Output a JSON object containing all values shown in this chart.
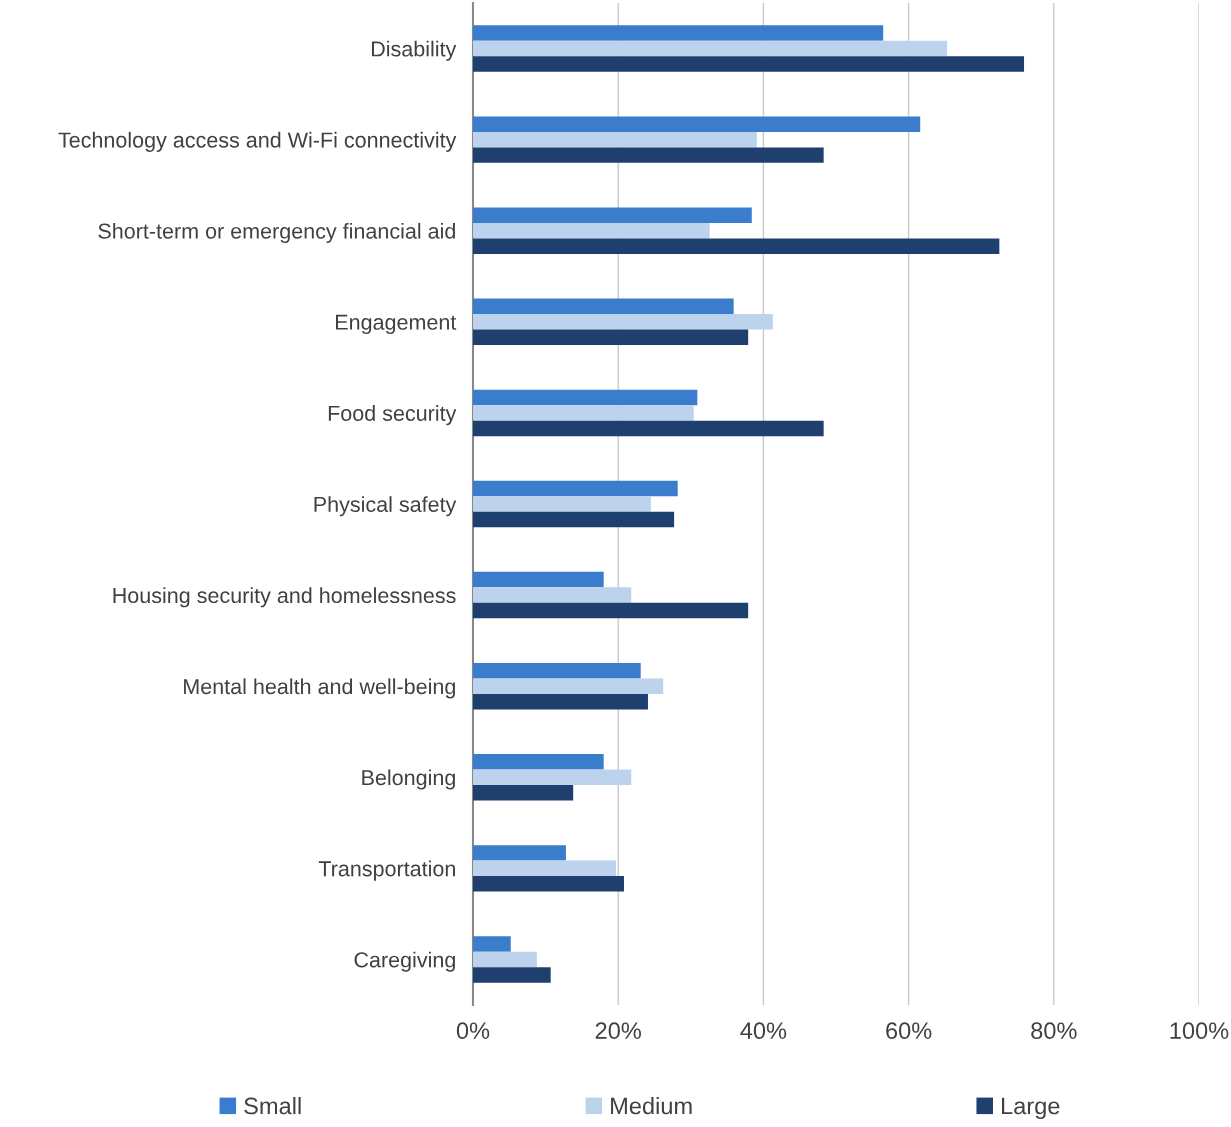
{
  "chart_data": {
    "type": "bar",
    "orientation": "horizontal",
    "categories": [
      "Disability",
      "Technology access and Wi-Fi connectivity",
      "Short-term or emergency financial aid",
      "Engagement",
      "Food security",
      "Physical safety",
      "Housing security and homelessness",
      "Mental health and well-being",
      "Belonging",
      "Transportation",
      "Caregiving"
    ],
    "series": [
      {
        "name": "Small",
        "color": "#3a7dcc",
        "values": [
          56.5,
          61.6,
          38.4,
          35.9,
          30.9,
          28.2,
          18.0,
          23.1,
          18.0,
          12.8,
          5.2
        ]
      },
      {
        "name": "Medium",
        "color": "#bdd2ec",
        "values": [
          65.3,
          39.1,
          32.6,
          41.3,
          30.4,
          24.5,
          21.8,
          26.2,
          21.8,
          19.7,
          8.8
        ]
      },
      {
        "name": "Large",
        "color": "#1f3f6e",
        "values": [
          75.9,
          48.3,
          72.5,
          37.9,
          48.3,
          27.7,
          37.9,
          24.1,
          13.8,
          20.8,
          10.7
        ]
      }
    ],
    "xlim": [
      0,
      100
    ],
    "xticks": [
      {
        "value": 0,
        "label": "0%"
      },
      {
        "value": 20,
        "label": "20%"
      },
      {
        "value": 40,
        "label": "40%"
      },
      {
        "value": 60,
        "label": "60%"
      },
      {
        "value": 80,
        "label": "80%"
      },
      {
        "value": 100,
        "label": "100%"
      }
    ],
    "grid": "x",
    "legend": "bottom"
  }
}
